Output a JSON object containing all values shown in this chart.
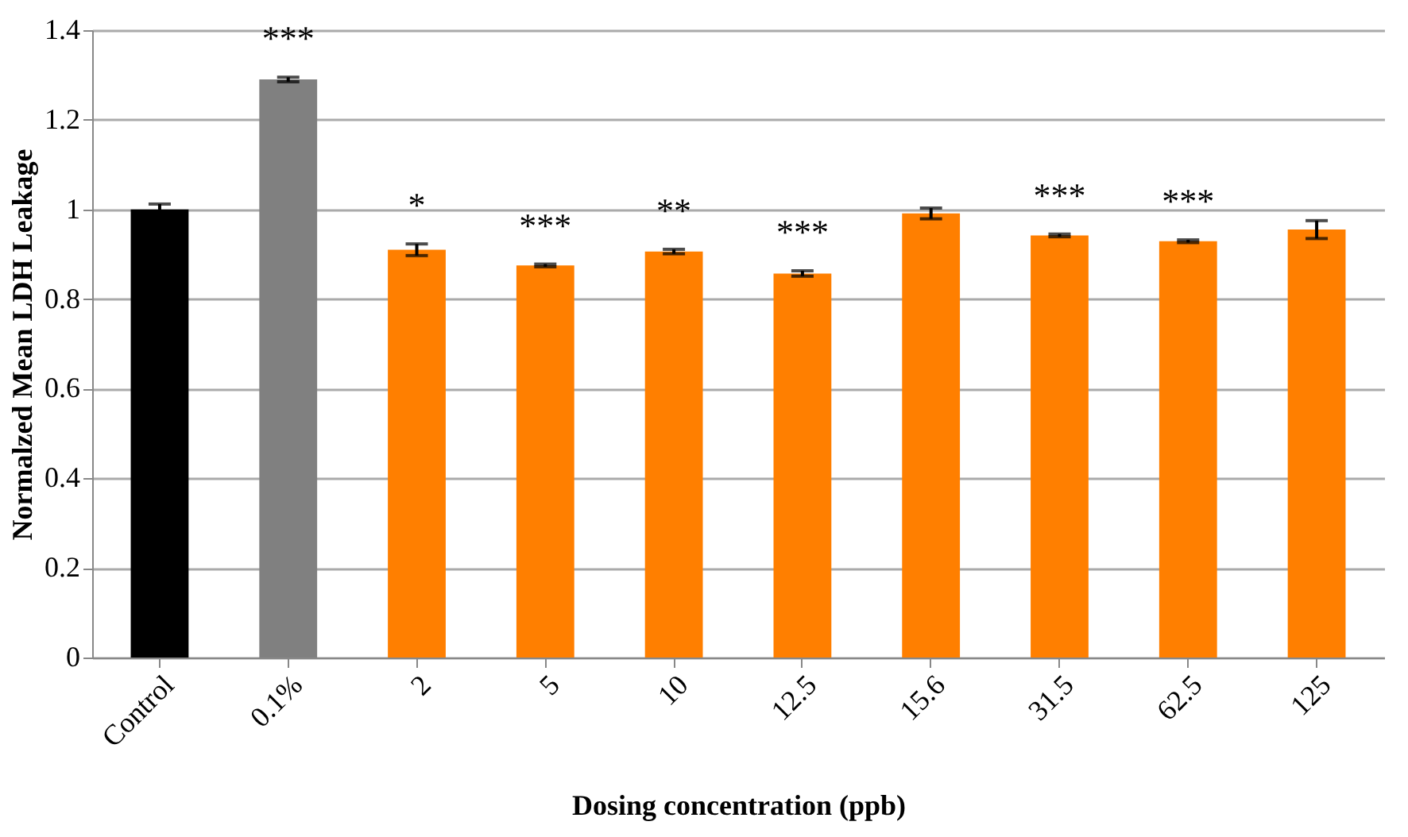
{
  "chart_data": {
    "type": "bar",
    "categories": [
      "Control",
      "0.1%",
      "2",
      "5",
      "10",
      "12.5",
      "15.6",
      "31.5",
      "62.5",
      "125"
    ],
    "values": [
      1.0,
      1.29,
      0.91,
      0.875,
      0.906,
      0.857,
      0.991,
      0.942,
      0.929,
      0.955
    ],
    "errors": [
      0.012,
      0.005,
      0.013,
      0.003,
      0.005,
      0.006,
      0.012,
      0.003,
      0.003,
      0.02
    ],
    "colors": [
      "#000000",
      "#808080",
      "#ff7f00",
      "#ff7f00",
      "#ff7f00",
      "#ff7f00",
      "#ff7f00",
      "#ff7f00",
      "#ff7f00",
      "#ff7f00"
    ],
    "xlabel": "Dosing concentration (ppb)",
    "ylabel": "Normalzed Mean LDH Leakage",
    "ylim": [
      0,
      1.4
    ],
    "yticks": [
      0,
      0.2,
      0.4,
      0.6,
      0.8,
      1,
      1.2,
      1.4
    ],
    "grid": "y",
    "value_labels": [
      null,
      "***",
      "*",
      "***",
      "**",
      "***",
      null,
      "***",
      "***",
      null
    ]
  }
}
